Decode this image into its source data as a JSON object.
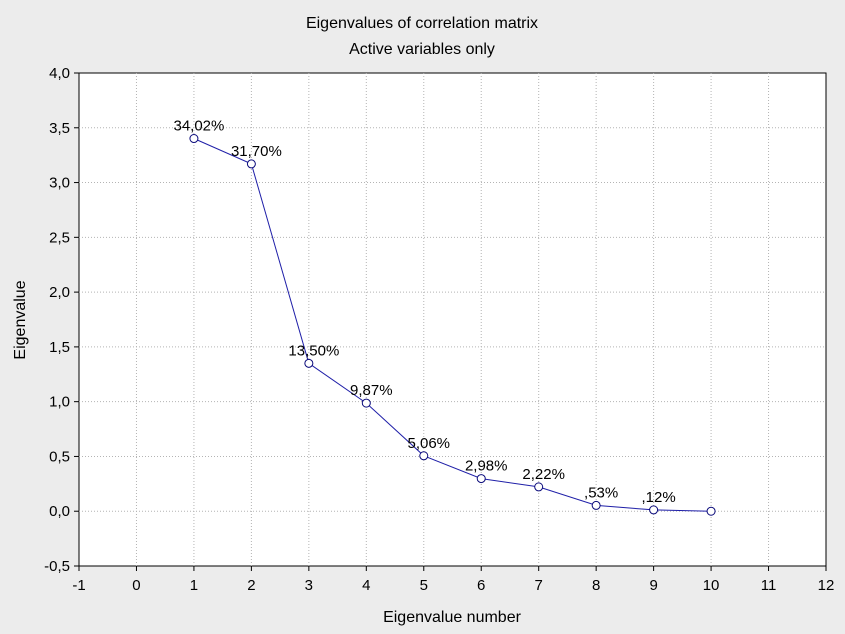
{
  "chart_data": {
    "type": "line",
    "title": "Eigenvalues of correlation matrix",
    "subtitle": "Active variables only",
    "xlabel": "Eigenvalue number",
    "ylabel": "Eigenvalue",
    "xlim": [
      -1,
      12
    ],
    "ylim": [
      -0.5,
      4.0
    ],
    "xticks": [
      -1,
      0,
      1,
      2,
      3,
      4,
      5,
      6,
      7,
      8,
      9,
      10,
      11,
      12
    ],
    "xtick_labels": [
      "-1",
      "0",
      "1",
      "2",
      "3",
      "4",
      "5",
      "6",
      "7",
      "8",
      "9",
      "10",
      "11",
      "12"
    ],
    "yticks": [
      -0.5,
      0.0,
      0.5,
      1.0,
      1.5,
      2.0,
      2.5,
      3.0,
      3.5,
      4.0
    ],
    "ytick_labels": [
      "-0,5",
      "0,0",
      "0,5",
      "1,0",
      "1,5",
      "2,0",
      "2,5",
      "3,0",
      "3,5",
      "4,0"
    ],
    "grid": true,
    "series": [
      {
        "x": [
          1,
          2,
          3,
          4,
          5,
          6,
          7,
          8,
          9,
          10
        ],
        "values": [
          3.402,
          3.17,
          1.35,
          0.987,
          0.506,
          0.298,
          0.222,
          0.053,
          0.012,
          0.0
        ],
        "labels": [
          "34,02%",
          "31,70%",
          "13,50%",
          "9,87%",
          "5,06%",
          "2,98%",
          "2,22%",
          ",53%",
          ",12%",
          ""
        ]
      }
    ],
    "colors": {
      "line": "#1f1fa8",
      "marker_edge": "#0a0a7a",
      "marker_fill": "#ffffff",
      "background": "#ececec",
      "plot_background": "#ffffff"
    }
  }
}
